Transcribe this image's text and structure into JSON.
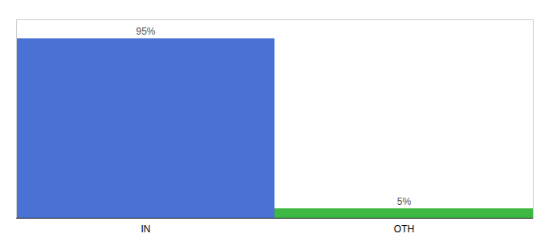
{
  "chart_data": {
    "type": "bar",
    "categories": [
      "IN",
      "OTH"
    ],
    "values": [
      95,
      5
    ],
    "value_labels": [
      "95%",
      "5%"
    ],
    "data_labels": true,
    "colors": [
      "#4a72d5",
      "#3cb843"
    ],
    "ylim": [
      0,
      105
    ],
    "tick_labels": "x",
    "grid": false
  }
}
